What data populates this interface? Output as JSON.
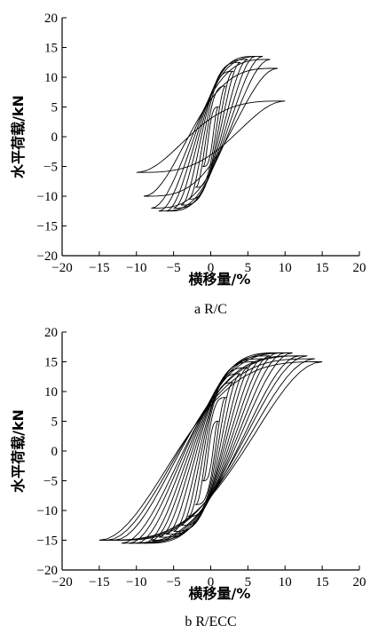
{
  "chart_data": [
    {
      "type": "line",
      "caption": "a  R/C",
      "xlabel": "横移量/%",
      "ylabel": "水平荷载/kN",
      "xlim": [
        -20,
        20
      ],
      "ylim": [
        -20,
        20
      ],
      "xticks": [
        -20,
        -15,
        -10,
        -5,
        0,
        5,
        10,
        15,
        20
      ],
      "yticks": [
        -20,
        -15,
        -10,
        -5,
        0,
        5,
        10,
        15,
        20
      ],
      "grid": false,
      "series": [
        {
          "loops": [
            {
              "dmax": 1.0,
              "fpos": 5.0,
              "dmin": -1.0,
              "fneg": -5.0
            },
            {
              "dmax": 2.0,
              "fpos": 8.5,
              "dmin": -2.0,
              "fneg": -8.5
            },
            {
              "dmax": 3.0,
              "fpos": 11.0,
              "dmin": -3.0,
              "fneg": -10.5
            },
            {
              "dmax": 4.0,
              "fpos": 12.5,
              "dmin": -4.0,
              "fneg": -11.5
            },
            {
              "dmax": 5.0,
              "fpos": 13.0,
              "dmin": -5.0,
              "fneg": -12.0
            },
            {
              "dmax": 6.0,
              "fpos": 13.5,
              "dmin": -6.0,
              "fneg": -12.5
            },
            {
              "dmax": 7.0,
              "fpos": 13.5,
              "dmin": -7.0,
              "fneg": -12.5
            },
            {
              "dmax": 8.0,
              "fpos": 13.0,
              "dmin": -8.0,
              "fneg": -12.0
            },
            {
              "dmax": 9.0,
              "fpos": 11.5,
              "dmin": -9.0,
              "fneg": -10.0
            },
            {
              "dmax": 10.0,
              "fpos": 6.0,
              "dmin": -10.0,
              "fneg": -6.0
            }
          ]
        }
      ]
    },
    {
      "type": "line",
      "caption": "b  R/ECC",
      "xlabel": "横移量/%",
      "ylabel": "水平荷载/kN",
      "xlim": [
        -20,
        20
      ],
      "ylim": [
        -20,
        20
      ],
      "xticks": [
        -20,
        -15,
        -10,
        -5,
        0,
        5,
        10,
        15,
        20
      ],
      "yticks": [
        -20,
        -15,
        -10,
        -5,
        0,
        5,
        10,
        15,
        20
      ],
      "grid": false,
      "series": [
        {
          "loops": [
            {
              "dmax": 1.0,
              "fpos": 5.0,
              "dmin": -1.0,
              "fneg": -5.0
            },
            {
              "dmax": 2.0,
              "fpos": 9.0,
              "dmin": -2.0,
              "fneg": -9.0
            },
            {
              "dmax": 3.0,
              "fpos": 11.5,
              "dmin": -3.0,
              "fneg": -11.0
            },
            {
              "dmax": 4.0,
              "fpos": 13.0,
              "dmin": -4.0,
              "fneg": -12.5
            },
            {
              "dmax": 5.0,
              "fpos": 14.0,
              "dmin": -5.0,
              "fneg": -13.5
            },
            {
              "dmax": 6.0,
              "fpos": 15.0,
              "dmin": -6.0,
              "fneg": -14.0
            },
            {
              "dmax": 7.0,
              "fpos": 15.5,
              "dmin": -7.0,
              "fneg": -14.5
            },
            {
              "dmax": 8.0,
              "fpos": 16.0,
              "dmin": -8.0,
              "fneg": -15.0
            },
            {
              "dmax": 9.0,
              "fpos": 16.5,
              "dmin": -9.0,
              "fneg": -15.5
            },
            {
              "dmax": 10.0,
              "fpos": 16.5,
              "dmin": -10.0,
              "fneg": -15.5
            },
            {
              "dmax": 11.0,
              "fpos": 16.5,
              "dmin": -11.0,
              "fneg": -15.5
            },
            {
              "dmax": 12.0,
              "fpos": 16.0,
              "dmin": -12.0,
              "fneg": -15.5
            },
            {
              "dmax": 13.0,
              "fpos": 16.0,
              "dmin": -13.0,
              "fneg": -15.0
            },
            {
              "dmax": 14.0,
              "fpos": 15.5,
              "dmin": -14.0,
              "fneg": -15.0
            },
            {
              "dmax": 15.0,
              "fpos": 15.0,
              "dmin": -15.0,
              "fneg": -15.0
            }
          ]
        }
      ]
    }
  ]
}
